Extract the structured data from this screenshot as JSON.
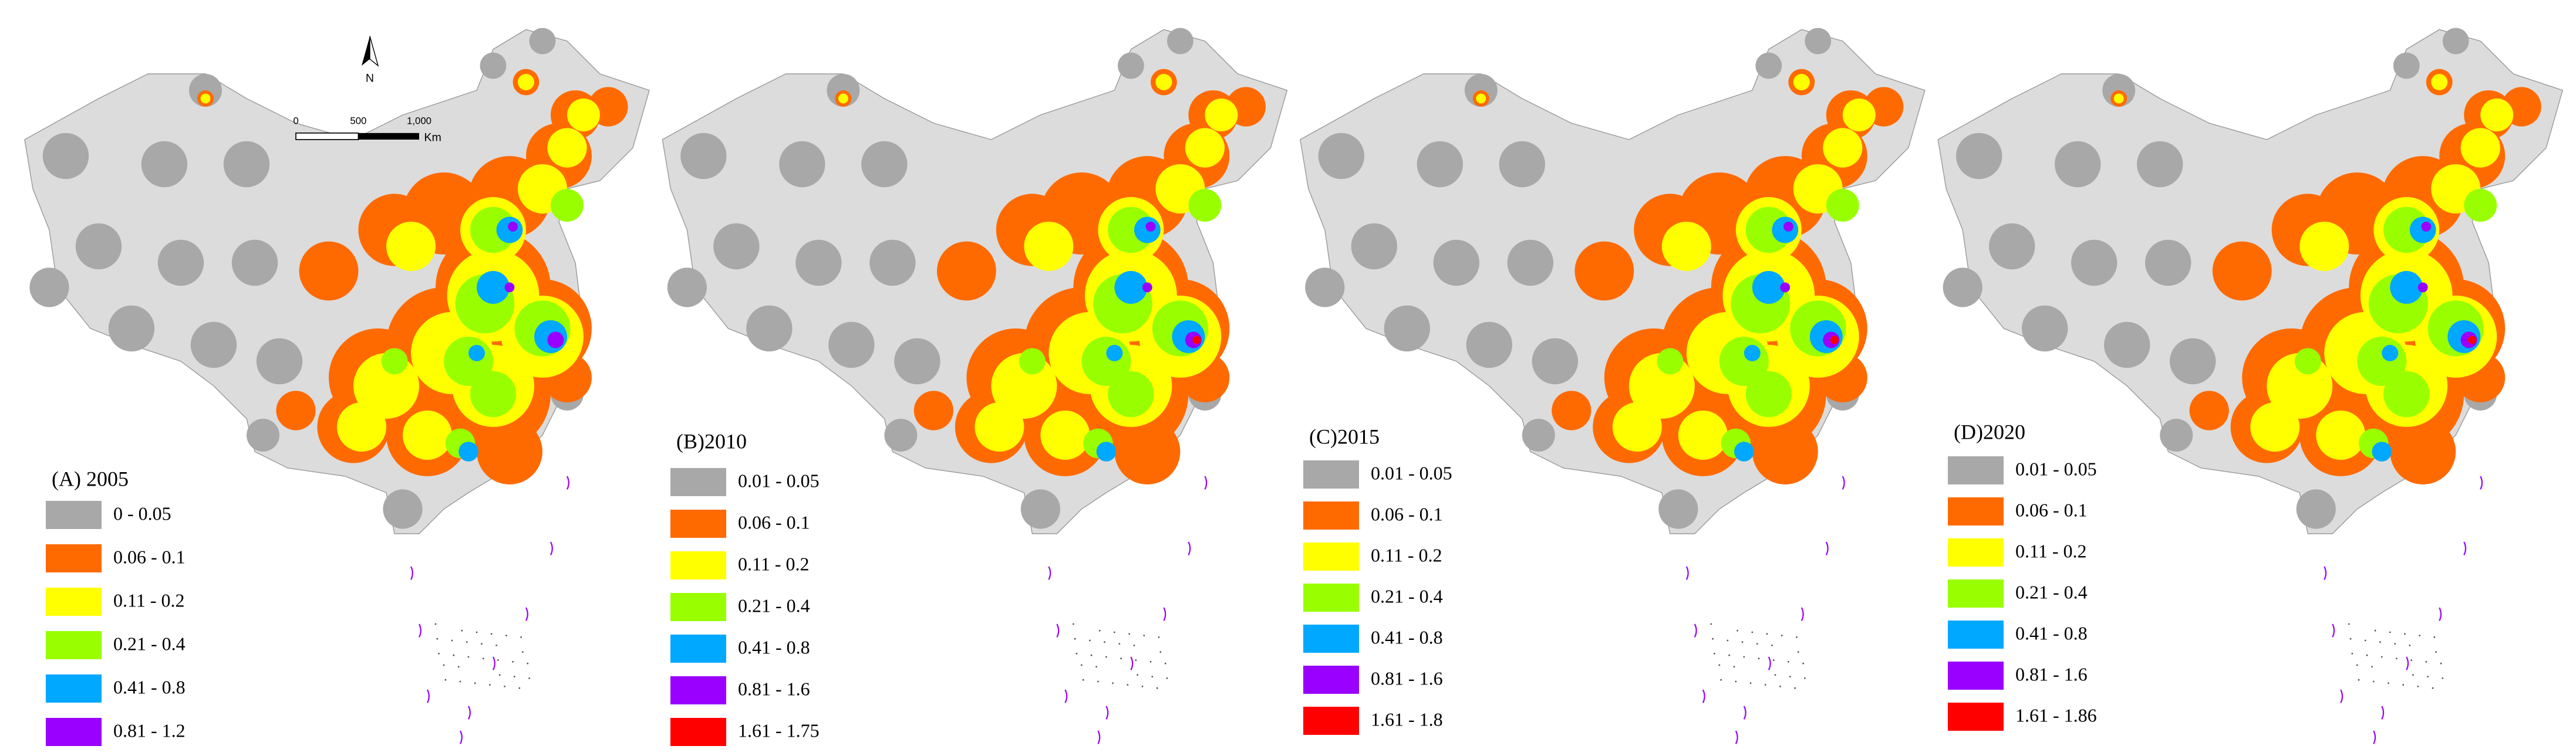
{
  "map": {
    "north": "N",
    "scale_bar": {
      "ticks": [
        "0",
        "500",
        "1,000"
      ],
      "unit": "Km"
    },
    "panels": [
      {
        "title": "(A) 2005",
        "legend": [
          {
            "label": "0 - 0.05",
            "color": "#a8a8a8"
          },
          {
            "label": "0.06 - 0.1",
            "color": "#ff6a00"
          },
          {
            "label": "0.11 - 0.2",
            "color": "#ffff00"
          },
          {
            "label": "0.21 - 0.4",
            "color": "#99ff00"
          },
          {
            "label": "0.41 - 0.8",
            "color": "#00a8ff"
          },
          {
            "label": "0.81 - 1.2",
            "color": "#9900ff"
          }
        ]
      },
      {
        "title": "(B)2010",
        "legend": [
          {
            "label": "0.01 - 0.05",
            "color": "#a8a8a8"
          },
          {
            "label": "0.06 - 0.1",
            "color": "#ff6a00"
          },
          {
            "label": "0.11 - 0.2",
            "color": "#ffff00"
          },
          {
            "label": "0.21 - 0.4",
            "color": "#99ff00"
          },
          {
            "label": "0.41 - 0.8",
            "color": "#00a8ff"
          },
          {
            "label": "0.81 - 1.6",
            "color": "#9900ff"
          },
          {
            "label": "1.61 - 1.75",
            "color": "#ff0000"
          }
        ]
      },
      {
        "title": "(C)2015",
        "legend": [
          {
            "label": "0.01 - 0.05",
            "color": "#a8a8a8"
          },
          {
            "label": "0.06 - 0.1",
            "color": "#ff6a00"
          },
          {
            "label": "0.11 - 0.2",
            "color": "#ffff00"
          },
          {
            "label": "0.21 - 0.4",
            "color": "#99ff00"
          },
          {
            "label": "0.41 - 0.8",
            "color": "#00a8ff"
          },
          {
            "label": "0.81 - 1.6",
            "color": "#9900ff"
          },
          {
            "label": "1.61 - 1.8",
            "color": "#ff0000"
          }
        ]
      },
      {
        "title": "(D)2020",
        "legend": [
          {
            "label": "0.01 - 0.05",
            "color": "#a8a8a8"
          },
          {
            "label": "0.06 - 0.1",
            "color": "#ff6a00"
          },
          {
            "label": "0.11 - 0.2",
            "color": "#ffff00"
          },
          {
            "label": "0.21 - 0.4",
            "color": "#99ff00"
          },
          {
            "label": "0.41 - 0.8",
            "color": "#00a8ff"
          },
          {
            "label": "0.81 - 1.6",
            "color": "#9900ff"
          },
          {
            "label": "1.61 - 1.86",
            "color": "#ff0000"
          }
        ]
      }
    ]
  }
}
